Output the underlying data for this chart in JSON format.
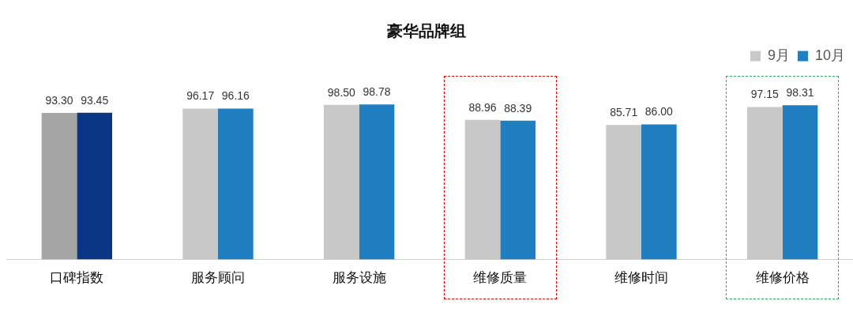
{
  "chart_data": {
    "type": "bar",
    "title": "豪华品牌组",
    "categories": [
      "口碑指数",
      "服务顾问",
      "服务设施",
      "维修质量",
      "维修时间",
      "维修价格"
    ],
    "series": [
      {
        "name": "9月",
        "color": "#c8c8c8",
        "colors": [
          "#a5a5a5",
          "#c8c8c8",
          "#c8c8c8",
          "#c8c8c8",
          "#c8c8c8",
          "#c8c8c8"
        ],
        "values": [
          93.3,
          96.17,
          98.5,
          88.96,
          85.71,
          97.15
        ],
        "value_labels": [
          "93.30",
          "96.17",
          "98.50",
          "88.96",
          "85.71",
          "97.15"
        ]
      },
      {
        "name": "10月",
        "color": "#1f7fc0",
        "colors": [
          "#0b3686",
          "#1f7fc0",
          "#1f7fc0",
          "#1f7fc0",
          "#1f7fc0",
          "#1f7fc0"
        ],
        "values": [
          93.45,
          96.16,
          98.78,
          88.39,
          86.0,
          98.31
        ],
        "value_labels": [
          "93.45",
          "96.16",
          "98.78",
          "88.39",
          "86.00",
          "98.31"
        ]
      }
    ],
    "tick_labels": "x",
    "grid": false,
    "legend": "top right"
  }
}
